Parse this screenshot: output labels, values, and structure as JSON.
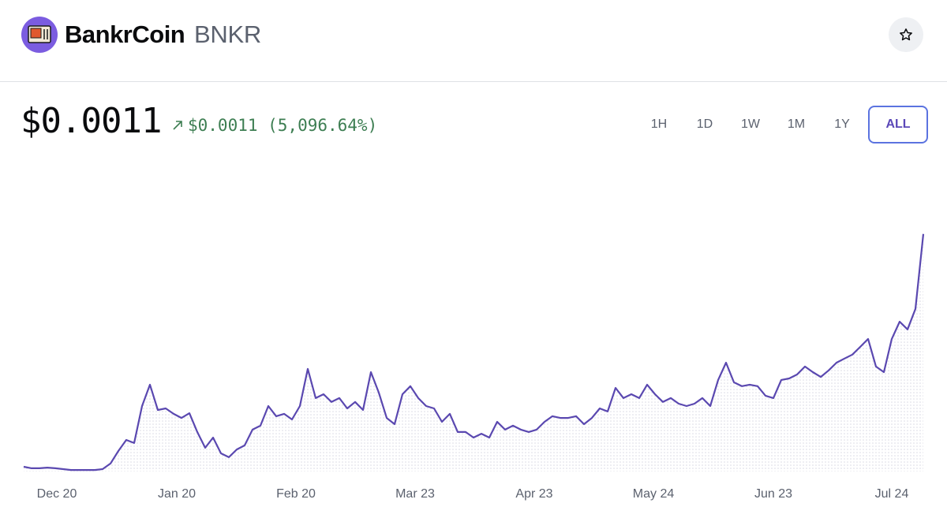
{
  "header": {
    "name": "BankrCoin",
    "ticker": "BNKR"
  },
  "price": "$0.0011",
  "change": "$0.0011 (5,096.64%)",
  "timeframes": [
    {
      "label": "1H",
      "active": false
    },
    {
      "label": "1D",
      "active": false
    },
    {
      "label": "1W",
      "active": false
    },
    {
      "label": "1M",
      "active": false
    },
    {
      "label": "1Y",
      "active": false
    },
    {
      "label": "ALL",
      "active": true
    }
  ],
  "chart_data": {
    "type": "area",
    "color": "#5a48b0",
    "values": [
      2.2e-05,
      1.5e-05,
      1.5e-05,
      1.8e-05,
      1.5e-05,
      1.1e-05,
      7e-06,
      7e-06,
      7e-06,
      7e-06,
      1.1e-05,
      3.7e-05,
      9.5e-05,
      0.000146,
      0.000132,
      0.000303,
      0.000402,
      0.000285,
      0.000292,
      0.000267,
      0.000248,
      0.00027,
      0.000183,
      0.00011,
      0.000157,
      8.4e-05,
      6.6e-05,
      0.000102,
      0.000121,
      0.000194,
      0.000212,
      0.000303,
      0.000256,
      0.000267,
      0.000241,
      0.000303,
      0.000475,
      0.00034,
      0.000358,
      0.000322,
      0.00034,
      0.000292,
      0.000322,
      0.000285,
      0.00046,
      0.000365,
      0.000248,
      0.000219,
      0.000358,
      0.000395,
      0.00034,
      0.000303,
      0.000292,
      0.00023,
      0.000267,
      0.000183,
      0.000183,
      0.000157,
      0.000175,
      0.000157,
      0.00023,
      0.000194,
      0.000212,
      0.000194,
      0.000183,
      0.000194,
      0.00023,
      0.000256,
      0.000248,
      0.000248,
      0.000256,
      0.000219,
      0.000248,
      0.000292,
      0.000278,
      0.000387,
      0.00034,
      0.000358,
      0.00034,
      0.000402,
      0.000358,
      0.000322,
      0.00034,
      0.000314,
      0.000303,
      0.000314,
      0.00034,
      0.000303,
      0.000424,
      0.000504,
      0.000413,
      0.000395,
      0.000402,
      0.000395,
      0.000351,
      0.00034,
      0.000424,
      0.000431,
      0.000449,
      0.000486,
      0.00046,
      0.000438,
      0.000468,
      0.000504,
      0.000523,
      0.000541,
      0.000577,
      0.000614,
      0.000486,
      0.00046,
      0.000614,
      0.000694,
      0.000658,
      0.000753,
      0.0011
    ],
    "xlim": [
      0,
      114
    ],
    "ylim": [
      0,
      0.0013
    ],
    "xticks": [
      {
        "value": 4.2,
        "label": "Dec 20"
      },
      {
        "value": 19.4,
        "label": "Jan 20"
      },
      {
        "value": 34.5,
        "label": "Feb 20"
      },
      {
        "value": 49.6,
        "label": "Mar 23"
      },
      {
        "value": 64.7,
        "label": "Apr 23"
      },
      {
        "value": 79.8,
        "label": "May 24"
      },
      {
        "value": 95,
        "label": "Jun 23"
      },
      {
        "value": 110,
        "label": "Jul 24"
      }
    ]
  }
}
